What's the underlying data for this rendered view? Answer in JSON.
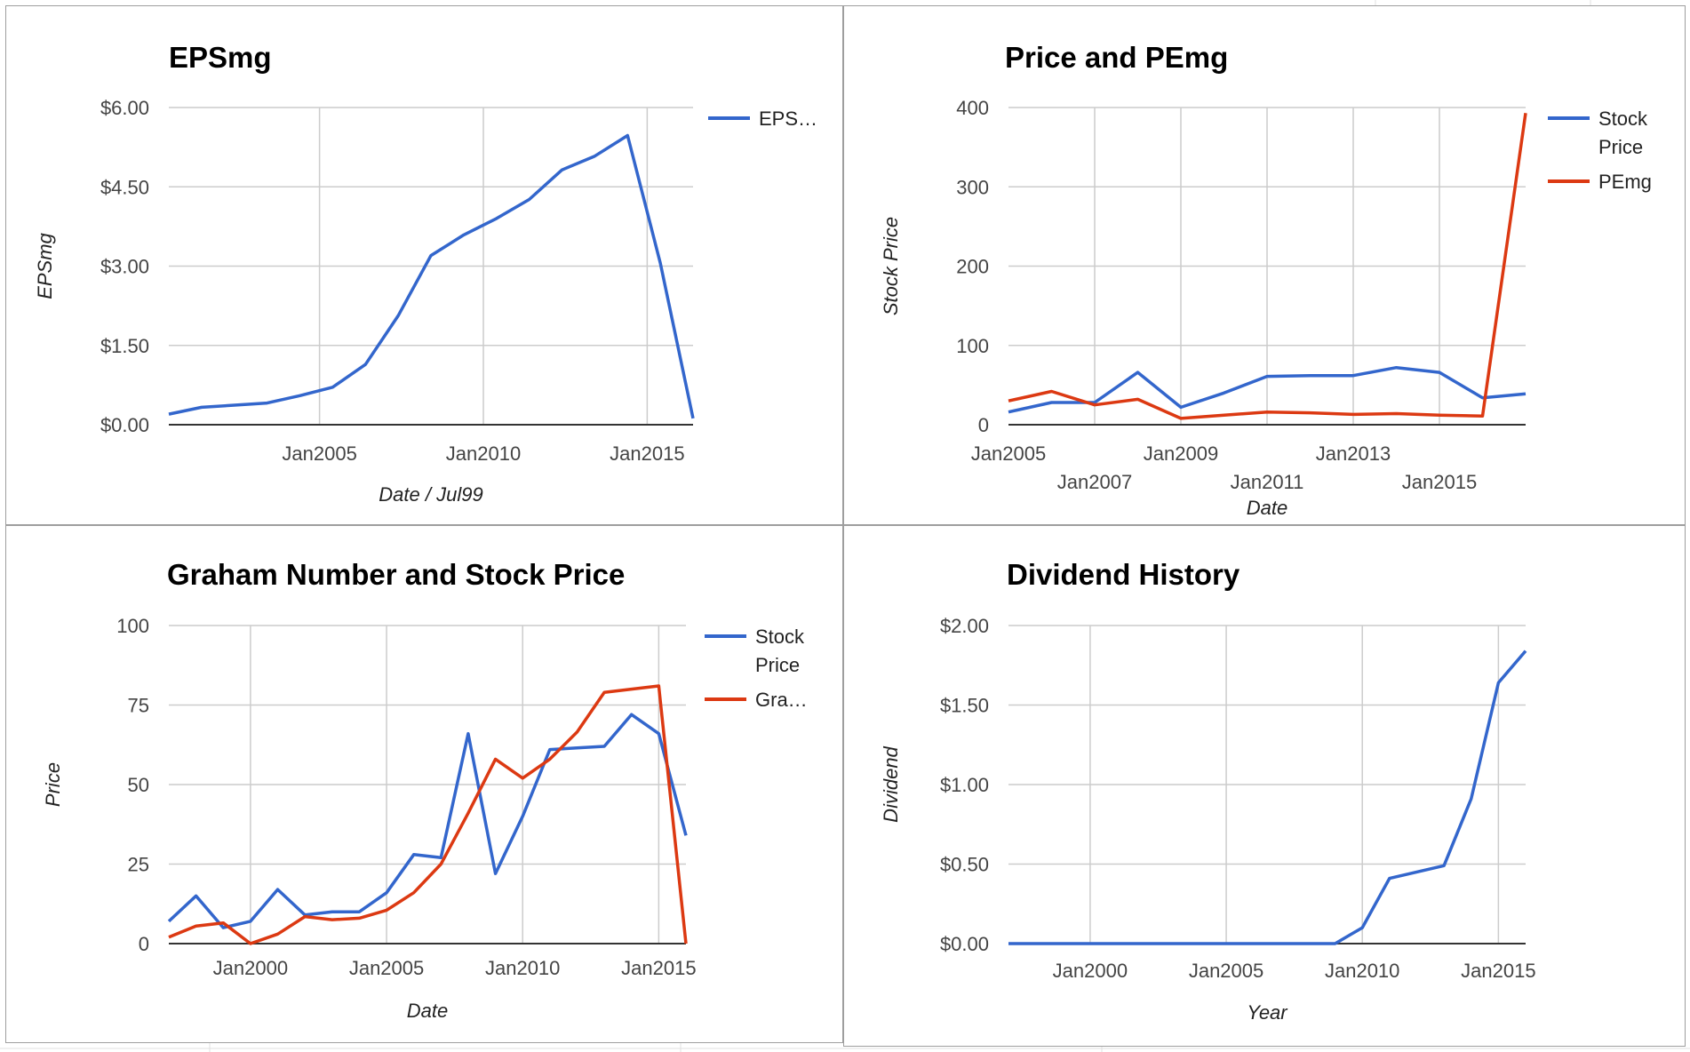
{
  "colors": {
    "blue": "#3366cc",
    "red": "#dc3912",
    "grid": "#cccccc",
    "axis": "#333333"
  },
  "chart_data": [
    {
      "id": "epsmg",
      "type": "line",
      "title": "EPSmg",
      "xlabel": "Date / Jul99",
      "ylabel": "EPSmg",
      "xlim": [
        2000.4,
        2016.4
      ],
      "ylim": [
        0,
        6
      ],
      "grid": true,
      "legend_position": "right",
      "x_ticks": [
        {
          "value": 2005,
          "label": "Jan2005",
          "row": 0
        },
        {
          "value": 2010,
          "label": "Jan2010",
          "row": 0
        },
        {
          "value": 2015,
          "label": "Jan2015",
          "row": 0
        }
      ],
      "y_ticks": [
        {
          "value": 0,
          "label": "$0.00"
        },
        {
          "value": 1.5,
          "label": "$1.50"
        },
        {
          "value": 3,
          "label": "$3.00"
        },
        {
          "value": 4.5,
          "label": "$4.50"
        },
        {
          "value": 6,
          "label": "$6.00"
        }
      ],
      "series": [
        {
          "name": "EPS…",
          "color": "#3366cc",
          "x": [
            2000.4,
            2001.4,
            2002.4,
            2003.4,
            2004.4,
            2005.4,
            2006.4,
            2007.4,
            2008.4,
            2009.4,
            2010.4,
            2011.4,
            2012.4,
            2013.4,
            2014.4,
            2015.4,
            2016.4
          ],
          "y": [
            0.2,
            0.33,
            0.37,
            0.41,
            0.55,
            0.71,
            1.14,
            2.06,
            3.2,
            3.59,
            3.9,
            4.26,
            4.82,
            5.08,
            5.47,
            3.06,
            0.12
          ]
        }
      ]
    },
    {
      "id": "price-pemg",
      "type": "line",
      "title": "Price and PEmg",
      "xlabel": "Date",
      "ylabel": "Stock Price",
      "xlim": [
        2005,
        2017
      ],
      "ylim": [
        0,
        400
      ],
      "grid": true,
      "legend_position": "right",
      "x_ticks": [
        {
          "value": 2005,
          "label": "Jan2005",
          "row": 0
        },
        {
          "value": 2007,
          "label": "Jan2007",
          "row": 1
        },
        {
          "value": 2009,
          "label": "Jan2009",
          "row": 0
        },
        {
          "value": 2011,
          "label": "Jan2011",
          "row": 1
        },
        {
          "value": 2013,
          "label": "Jan2013",
          "row": 0
        },
        {
          "value": 2015,
          "label": "Jan2015",
          "row": 1
        }
      ],
      "y_ticks": [
        {
          "value": 0,
          "label": "0"
        },
        {
          "value": 100,
          "label": "100"
        },
        {
          "value": 200,
          "label": "200"
        },
        {
          "value": 300,
          "label": "300"
        },
        {
          "value": 400,
          "label": "400"
        }
      ],
      "series": [
        {
          "name": "Stock Price",
          "color": "#3366cc",
          "x": [
            2005,
            2006,
            2007,
            2008,
            2009,
            2010,
            2011,
            2012,
            2013,
            2014,
            2015,
            2016,
            2017
          ],
          "y": [
            16,
            28,
            28,
            66,
            22,
            40,
            61,
            62,
            62,
            72,
            66,
            34,
            39
          ]
        },
        {
          "name": "PEmg",
          "color": "#dc3912",
          "x": [
            2005,
            2006,
            2007,
            2008,
            2009,
            2010,
            2011,
            2012,
            2013,
            2014,
            2015,
            2016,
            2017
          ],
          "y": [
            30,
            42,
            25,
            32,
            8,
            12,
            16,
            15,
            13,
            14,
            12,
            11,
            393
          ]
        }
      ]
    },
    {
      "id": "graham",
      "type": "line",
      "title": "Graham Number and Stock Price",
      "xlabel": "Date",
      "ylabel": "Price",
      "xlim": [
        1997,
        2016
      ],
      "ylim": [
        0,
        100
      ],
      "grid": true,
      "legend_position": "right",
      "x_ticks": [
        {
          "value": 2000,
          "label": "Jan2000",
          "row": 0
        },
        {
          "value": 2005,
          "label": "Jan2005",
          "row": 0
        },
        {
          "value": 2010,
          "label": "Jan2010",
          "row": 0
        },
        {
          "value": 2015,
          "label": "Jan2015",
          "row": 0
        }
      ],
      "y_ticks": [
        {
          "value": 0,
          "label": "0"
        },
        {
          "value": 25,
          "label": "25"
        },
        {
          "value": 50,
          "label": "50"
        },
        {
          "value": 75,
          "label": "75"
        },
        {
          "value": 100,
          "label": "100"
        }
      ],
      "series": [
        {
          "name": "Stock Price",
          "color": "#3366cc",
          "x": [
            1997,
            1998,
            1999,
            2000,
            2001,
            2002,
            2003,
            2004,
            2005,
            2006,
            2007,
            2008,
            2009,
            2010,
            2011,
            2012,
            2013,
            2014,
            2015,
            2016
          ],
          "y": [
            7,
            15,
            5,
            7,
            17,
            9,
            10,
            10,
            16,
            28,
            27,
            66,
            22,
            40,
            61,
            61.5,
            62,
            72,
            66,
            34
          ]
        },
        {
          "name": "Gra…",
          "color": "#dc3912",
          "x": [
            1997,
            1998,
            1999,
            2000,
            2001,
            2002,
            2003,
            2004,
            2005,
            2006,
            2007,
            2008,
            2009,
            2010,
            2011,
            2012,
            2013,
            2014,
            2015,
            2016
          ],
          "y": [
            2,
            5.5,
            6.5,
            0,
            3,
            8.5,
            7.5,
            8,
            10.5,
            16,
            25,
            41,
            58,
            52,
            58,
            66.5,
            79,
            80,
            81,
            0
          ]
        }
      ]
    },
    {
      "id": "dividend",
      "type": "line",
      "title": "Dividend History",
      "xlabel": "Year",
      "ylabel": "Dividend",
      "xlim": [
        1997,
        2016
      ],
      "ylim": [
        0,
        2
      ],
      "grid": true,
      "legend_position": "none",
      "x_ticks": [
        {
          "value": 2000,
          "label": "Jan2000",
          "row": 0
        },
        {
          "value": 2005,
          "label": "Jan2005",
          "row": 0
        },
        {
          "value": 2010,
          "label": "Jan2010",
          "row": 0
        },
        {
          "value": 2015,
          "label": "Jan2015",
          "row": 0
        }
      ],
      "y_ticks": [
        {
          "value": 0,
          "label": "$0.00"
        },
        {
          "value": 0.5,
          "label": "$0.50"
        },
        {
          "value": 1,
          "label": "$1.00"
        },
        {
          "value": 1.5,
          "label": "$1.50"
        },
        {
          "value": 2,
          "label": "$2.00"
        }
      ],
      "series": [
        {
          "name": "Dividend",
          "color": "#3366cc",
          "x": [
            1997,
            1998,
            1999,
            2000,
            2001,
            2002,
            2003,
            2004,
            2005,
            2006,
            2007,
            2008,
            2009,
            2010,
            2011,
            2012,
            2013,
            2014,
            2015,
            2016
          ],
          "y": [
            0,
            0,
            0,
            0,
            0,
            0,
            0,
            0,
            0,
            0,
            0,
            0,
            0,
            0.1,
            0.41,
            0.45,
            0.49,
            0.91,
            1.64,
            1.84
          ]
        }
      ]
    }
  ]
}
